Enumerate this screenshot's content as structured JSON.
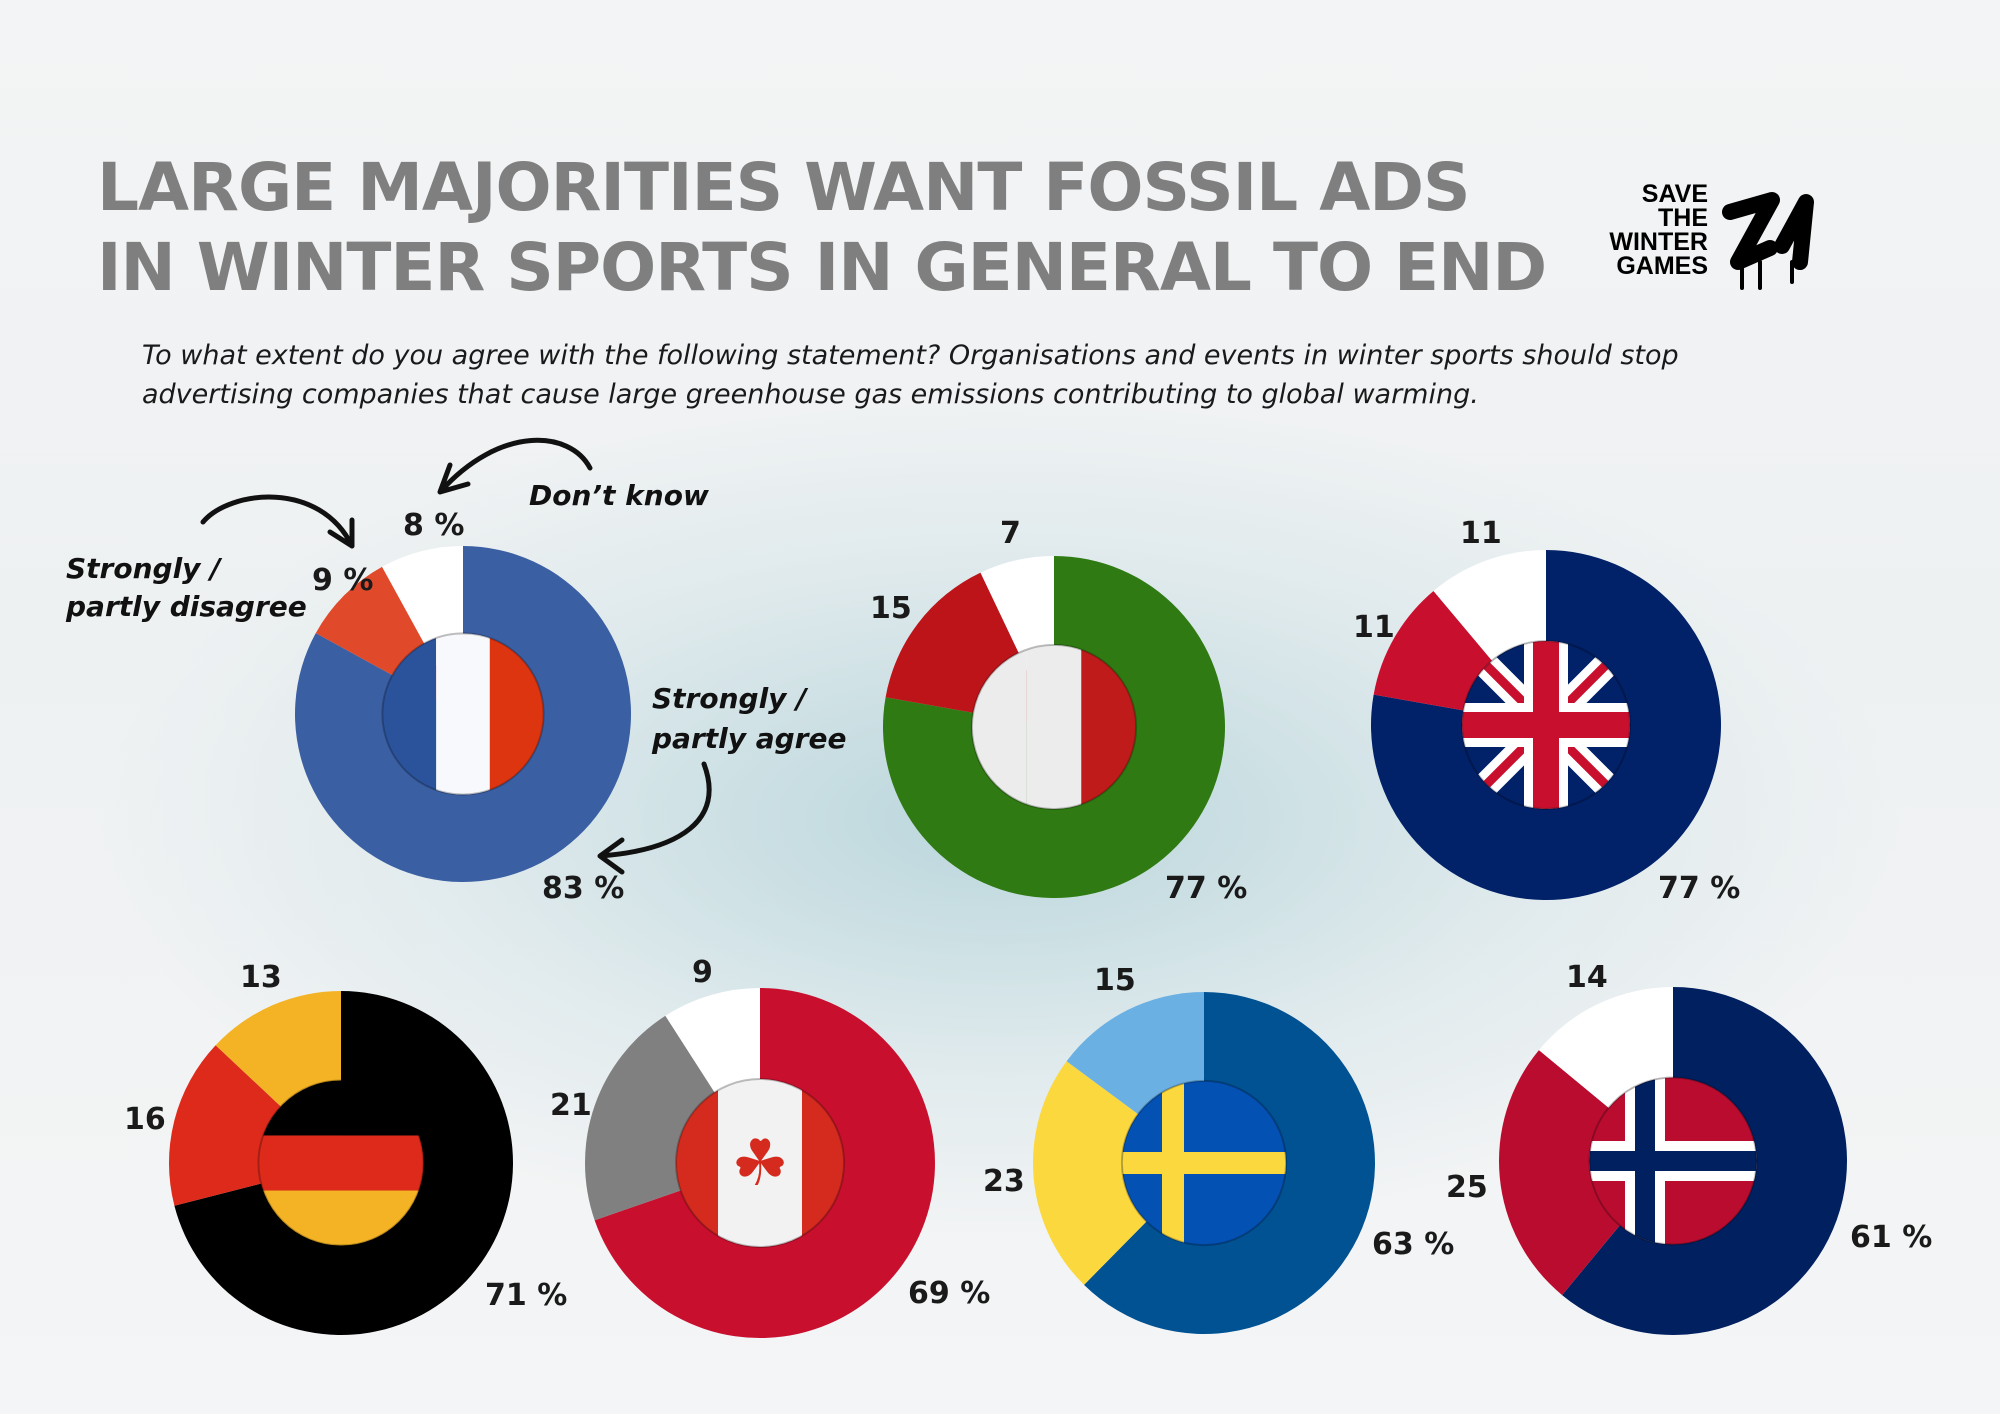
{
  "title_lines": [
    "LARGE MAJORITIES WANT FOSSIL ADS",
    "IN WINTER SPORTS IN GENERAL TO END"
  ],
  "subtitle_lines": [
    "To what extent do you agree with the following statement? Organisations and events in winter sports should stop",
    "advertising companies that cause large greenhouse gas emissions contributing to global warming."
  ],
  "logo": {
    "lines": [
      "SAVE",
      "THE",
      "WINTER",
      "GAMES"
    ],
    "mark": "ZG"
  },
  "annotations": {
    "dont_know": "Don’t know",
    "disagree": [
      "Strongly /",
      "partly disagree"
    ],
    "agree": [
      "Strongly /",
      "partly agree"
    ]
  },
  "chart_data": {
    "type": "pie",
    "variant": "donut",
    "categories": [
      "Strongly / partly agree",
      "Strongly / partly disagree",
      "Don’t know"
    ],
    "unit": "%",
    "series": [
      {
        "name": "France",
        "flag": "france",
        "values": [
          83,
          9,
          8
        ],
        "labels": [
          "83 %",
          "9 %",
          "8 %"
        ],
        "colors": [
          "#3a5fa3",
          "#e04a2a",
          "#ffffff"
        ]
      },
      {
        "name": "Italy",
        "flag": "italy",
        "values": [
          77,
          15,
          7
        ],
        "labels": [
          "77 %",
          "15",
          "7"
        ],
        "colors": [
          "#2f7a12",
          "#bd1419",
          "#ffffff"
        ]
      },
      {
        "name": "United Kingdom",
        "flag": "uk",
        "values": [
          77,
          11,
          11
        ],
        "labels": [
          "77 %",
          "11",
          "11"
        ],
        "colors": [
          "#012169",
          "#c8102e",
          "#ffffff"
        ]
      },
      {
        "name": "Germany",
        "flag": "germany",
        "values": [
          71,
          16,
          13
        ],
        "labels": [
          "71 %",
          "16",
          "13"
        ],
        "colors": [
          "#000000",
          "#dd2a1b",
          "#f3b324"
        ]
      },
      {
        "name": "Canada",
        "flag": "canada",
        "values": [
          69,
          21,
          9
        ],
        "labels": [
          "69 %",
          "21",
          "9"
        ],
        "colors": [
          "#c8102e",
          "#808080",
          "#ffffff"
        ]
      },
      {
        "name": "Sweden",
        "flag": "sweden",
        "values": [
          63,
          23,
          15
        ],
        "labels": [
          "63 %",
          "23",
          "15"
        ],
        "colors": [
          "#005293",
          "#fcd83f",
          "#6ab0e3"
        ]
      },
      {
        "name": "Norway",
        "flag": "norway",
        "values": [
          61,
          25,
          14
        ],
        "labels": [
          "61 %",
          "25",
          "14"
        ],
        "colors": [
          "#002060",
          "#ba0c2f",
          "#ffffff"
        ]
      }
    ]
  }
}
